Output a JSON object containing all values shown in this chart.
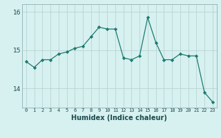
{
  "x": [
    0,
    1,
    2,
    3,
    4,
    5,
    6,
    7,
    8,
    9,
    10,
    11,
    12,
    13,
    14,
    15,
    16,
    17,
    18,
    19,
    20,
    21,
    22,
    23
  ],
  "y": [
    14.7,
    14.55,
    14.75,
    14.75,
    14.9,
    14.95,
    15.05,
    15.1,
    15.35,
    15.6,
    15.55,
    15.55,
    14.8,
    14.75,
    14.85,
    15.85,
    15.2,
    14.75,
    14.75,
    14.9,
    14.85,
    14.85,
    13.9,
    13.65
  ],
  "line_color": "#1a7a6e",
  "marker": "D",
  "marker_size": 2.2,
  "background_color": "#d7f0f0",
  "grid_color": "#b8d4d4",
  "xlabel": "Humidex (Indice chaleur)",
  "ylim": [
    13.5,
    16.2
  ],
  "yticks": [
    14,
    15,
    16
  ]
}
